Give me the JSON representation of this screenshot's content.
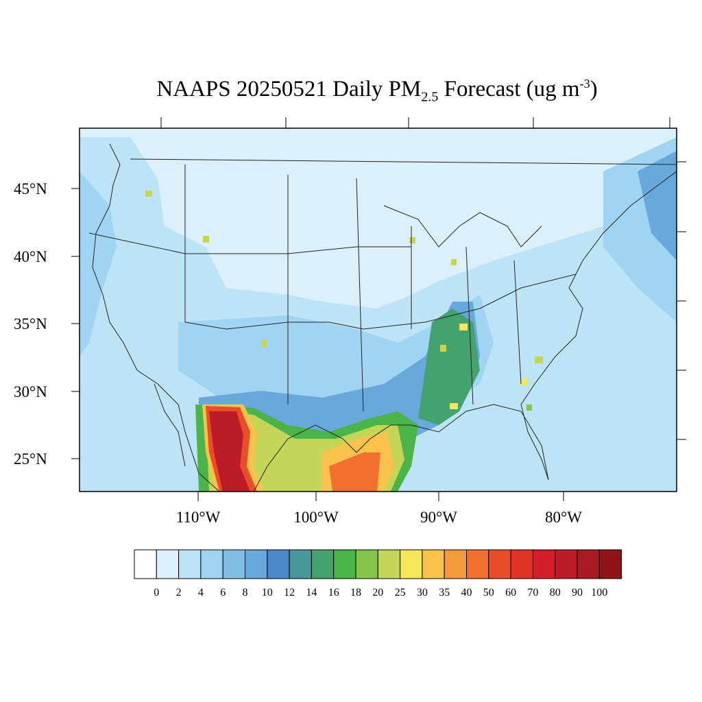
{
  "title": {
    "main": "NAAPS 20250521 Daily PM",
    "sub": "2.5",
    "after": " Forecast (ug m",
    "sup": "-3",
    "close": ")"
  },
  "map": {
    "lat_labels": [
      "45°N",
      "40°N",
      "35°N",
      "30°N",
      "25°N"
    ],
    "lon_labels": [
      "110°W",
      "100°W",
      "90°W",
      "80°W"
    ],
    "background_color": "#dbf0fa",
    "line_color": "#222222"
  },
  "colorbar": {
    "labels": [
      "0",
      "2",
      "4",
      "6",
      "8",
      "10",
      "12",
      "14",
      "16",
      "18",
      "20",
      "25",
      "30",
      "35",
      "40",
      "50",
      "60",
      "70",
      "80",
      "90",
      "100"
    ],
    "colors": [
      "#ffffff",
      "#dbf0fa",
      "#bde3f6",
      "#9fd4f2",
      "#82bde4",
      "#68a8da",
      "#4a88c7",
      "#47989b",
      "#43a26e",
      "#4bb448",
      "#86c54b",
      "#c4d558",
      "#f6e65a",
      "#f8c24c",
      "#f5993e",
      "#f26f2f",
      "#e94e2a",
      "#de3528",
      "#d21f2b",
      "#bb1c27",
      "#a81b22",
      "#8e1418"
    ]
  }
}
